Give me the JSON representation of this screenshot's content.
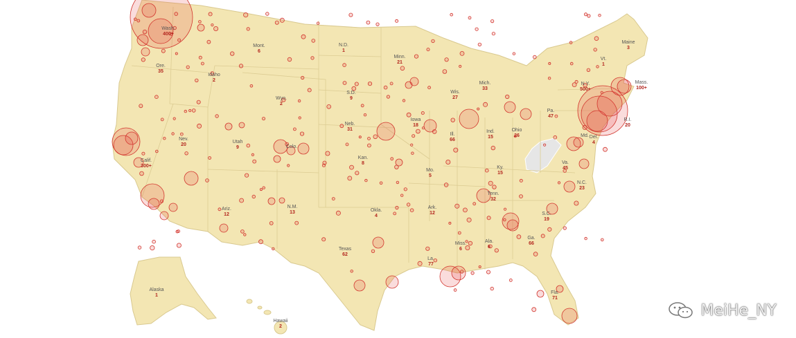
{
  "map": {
    "colors": {
      "land": "#f3e6b3",
      "border": "#d9c98f",
      "highlight_state": "#e6e6e6",
      "bubble_stroke": "#d2362e"
    },
    "states": [
      {
        "id": "wash",
        "label": "Wash.",
        "count": "400+"
      },
      {
        "id": "ore",
        "label": "Ore.",
        "count": "35"
      },
      {
        "id": "idaho",
        "label": "Idaho",
        "count": "2"
      },
      {
        "id": "mont",
        "label": "Mont.",
        "count": "6"
      },
      {
        "id": "wyo",
        "label": "Wyo.",
        "count": "2"
      },
      {
        "id": "nd",
        "label": "N.D.",
        "count": "1"
      },
      {
        "id": "sd",
        "label": "S.D.",
        "count": "9"
      },
      {
        "id": "minn",
        "label": "Minn.",
        "count": "21"
      },
      {
        "id": "wis",
        "label": "Wis.",
        "count": "27"
      },
      {
        "id": "mich",
        "label": "Mich.",
        "count": "33"
      },
      {
        "id": "iowa",
        "label": "Iowa",
        "count": "18"
      },
      {
        "id": "neb",
        "label": "Neb.",
        "count": "31"
      },
      {
        "id": "nev",
        "label": "Nev.",
        "count": "20"
      },
      {
        "id": "utah",
        "label": "Utah",
        "count": "9"
      },
      {
        "id": "colo",
        "label": "Colo.",
        "count": ""
      },
      {
        "id": "calif",
        "label": "Calif.",
        "count": "300+"
      },
      {
        "id": "ariz",
        "label": "Ariz.",
        "count": "12"
      },
      {
        "id": "nm",
        "label": "N.M.",
        "count": "13"
      },
      {
        "id": "kan",
        "label": "Kan.",
        "count": "8"
      },
      {
        "id": "okla",
        "label": "Okla.",
        "count": "4"
      },
      {
        "id": "texas",
        "label": "Texas",
        "count": "62"
      },
      {
        "id": "mo",
        "label": "Mo.",
        "count": "5"
      },
      {
        "id": "ark",
        "label": "Ark.",
        "count": "12"
      },
      {
        "id": "la",
        "label": "La.",
        "count": "77"
      },
      {
        "id": "ill",
        "label": "Ill.",
        "count": "66"
      },
      {
        "id": "ind",
        "label": "Ind.",
        "count": "15"
      },
      {
        "id": "ohio",
        "label": "Ohio",
        "count": "26"
      },
      {
        "id": "ky",
        "label": "Ky.",
        "count": "15"
      },
      {
        "id": "tenn",
        "label": "Tenn.",
        "count": "32"
      },
      {
        "id": "miss",
        "label": "Miss.",
        "count": "6"
      },
      {
        "id": "ala",
        "label": "Ala.",
        "count": "6"
      },
      {
        "id": "ga",
        "label": "Ga.",
        "count": "66"
      },
      {
        "id": "fla",
        "label": "Fla.",
        "count": "71"
      },
      {
        "id": "sc",
        "label": "S.C.",
        "count": "19"
      },
      {
        "id": "nc",
        "label": "N.C.",
        "count": "23"
      },
      {
        "id": "va",
        "label": "Va.",
        "count": "45"
      },
      {
        "id": "pa",
        "label": "Pa.",
        "count": "47"
      },
      {
        "id": "ny",
        "label": "N.Y.",
        "count": "500+"
      },
      {
        "id": "vt",
        "label": "Vt.",
        "count": "1"
      },
      {
        "id": "maine",
        "label": "Maine",
        "count": "3"
      },
      {
        "id": "mass",
        "label": "Mass.",
        "count": "100+"
      },
      {
        "id": "ri",
        "label": "R.I.",
        "count": "20"
      },
      {
        "id": "md",
        "label": "Md.",
        "count": ""
      },
      {
        "id": "del",
        "label": "Del.",
        "count": "4"
      },
      {
        "id": "alaska",
        "label": "Alaska",
        "count": "1"
      },
      {
        "id": "hawaii",
        "label": "Hawaii",
        "count": "2"
      }
    ]
  },
  "watermark": {
    "text": "MeiHe_NY",
    "icon": "wechat-icon"
  }
}
